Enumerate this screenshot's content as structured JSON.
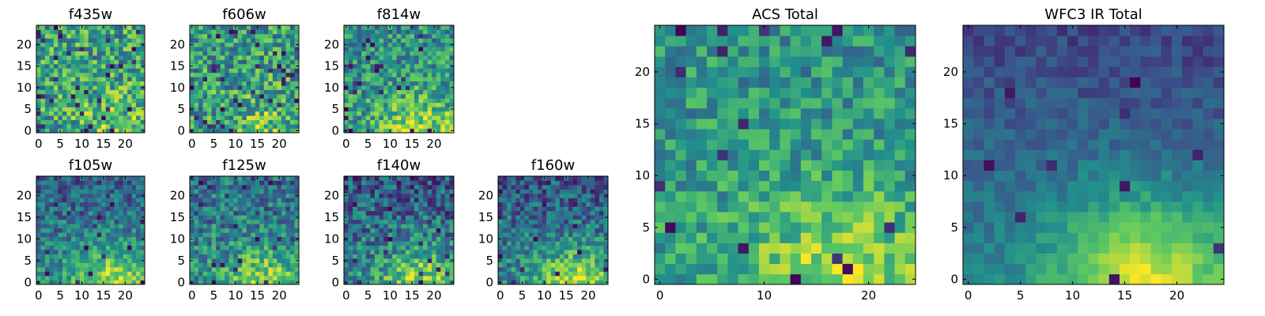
{
  "colormap": [
    "#440154",
    "#3b528b",
    "#21918c",
    "#5ec962",
    "#fde725"
  ],
  "chart_data": [
    {
      "type": "heatmap",
      "title": "f435w",
      "grid": false,
      "xticks": [
        0,
        5,
        10,
        15,
        20
      ],
      "yticks": [
        0,
        5,
        10,
        15,
        20
      ],
      "xlim": [
        0,
        25
      ],
      "ylim": [
        0,
        25
      ],
      "n": 25,
      "base": 0.58,
      "noise": 0.3,
      "hotspot": 0.16,
      "gradient": 0.0,
      "dark": 0.05,
      "seed": 11
    },
    {
      "type": "heatmap",
      "title": "f606w",
      "grid": false,
      "xticks": [
        0,
        5,
        10,
        15,
        20
      ],
      "yticks": [
        0,
        5,
        10,
        15,
        20
      ],
      "xlim": [
        0,
        25
      ],
      "ylim": [
        0,
        25
      ],
      "n": 25,
      "base": 0.55,
      "noise": 0.3,
      "hotspot": 0.18,
      "gradient": 0.0,
      "dark": 0.05,
      "seed": 23
    },
    {
      "type": "heatmap",
      "title": "f814w",
      "grid": false,
      "xticks": [
        0,
        5,
        10,
        15,
        20
      ],
      "yticks": [
        0,
        5,
        10,
        15,
        20
      ],
      "xlim": [
        0,
        25
      ],
      "ylim": [
        0,
        25
      ],
      "n": 25,
      "base": 0.55,
      "noise": 0.26,
      "hotspot": 0.3,
      "gradient": 0.05,
      "dark": 0.04,
      "seed": 37
    },
    {
      "type": "heatmap",
      "title": "f105w",
      "grid": false,
      "xticks": [
        0,
        5,
        10,
        15,
        20
      ],
      "yticks": [
        0,
        5,
        10,
        15,
        20
      ],
      "xlim": [
        0,
        25
      ],
      "ylim": [
        0,
        25
      ],
      "n": 25,
      "base": 0.48,
      "noise": 0.2,
      "hotspot": 0.4,
      "gradient": 0.18,
      "dark": 0.03,
      "seed": 41
    },
    {
      "type": "heatmap",
      "title": "f125w",
      "grid": false,
      "xticks": [
        0,
        5,
        10,
        15,
        20
      ],
      "yticks": [
        0,
        5,
        10,
        15,
        20
      ],
      "xlim": [
        0,
        25
      ],
      "ylim": [
        0,
        25
      ],
      "n": 25,
      "base": 0.5,
      "noise": 0.24,
      "hotspot": 0.34,
      "gradient": 0.14,
      "dark": 0.04,
      "seed": 53
    },
    {
      "type": "heatmap",
      "title": "f140w",
      "grid": false,
      "xticks": [
        0,
        5,
        10,
        15,
        20
      ],
      "yticks": [
        0,
        5,
        10,
        15,
        20
      ],
      "xlim": [
        0,
        25
      ],
      "ylim": [
        0,
        25
      ],
      "n": 25,
      "base": 0.46,
      "noise": 0.24,
      "hotspot": 0.38,
      "gradient": 0.18,
      "dark": 0.04,
      "seed": 67
    },
    {
      "type": "heatmap",
      "title": "f160w",
      "grid": false,
      "xticks": [
        0,
        5,
        10,
        15,
        20
      ],
      "yticks": [
        0,
        5,
        10,
        15,
        20
      ],
      "xlim": [
        0,
        25
      ],
      "ylim": [
        0,
        25
      ],
      "n": 25,
      "base": 0.46,
      "noise": 0.22,
      "hotspot": 0.44,
      "gradient": 0.2,
      "dark": 0.03,
      "seed": 79
    },
    {
      "type": "heatmap",
      "title": "ACS Total",
      "grid": false,
      "xticks": [
        0,
        10,
        20
      ],
      "yticks": [
        0,
        5,
        10,
        15,
        20
      ],
      "xlim": [
        0,
        25
      ],
      "ylim": [
        0,
        25
      ],
      "n": 25,
      "base": 0.58,
      "noise": 0.2,
      "hotspot": 0.28,
      "gradient": 0.08,
      "dark": 0.035,
      "seed": 97
    },
    {
      "type": "heatmap",
      "title": "WFC3 IR Total",
      "grid": false,
      "xticks": [
        0,
        5,
        10,
        15,
        20
      ],
      "yticks": [
        0,
        5,
        10,
        15,
        20
      ],
      "xlim": [
        0,
        25
      ],
      "ylim": [
        0,
        25
      ],
      "n": 25,
      "base": 0.44,
      "noise": 0.09,
      "hotspot": 0.5,
      "gradient": 0.24,
      "dark": 0.02,
      "seed": 131
    }
  ]
}
